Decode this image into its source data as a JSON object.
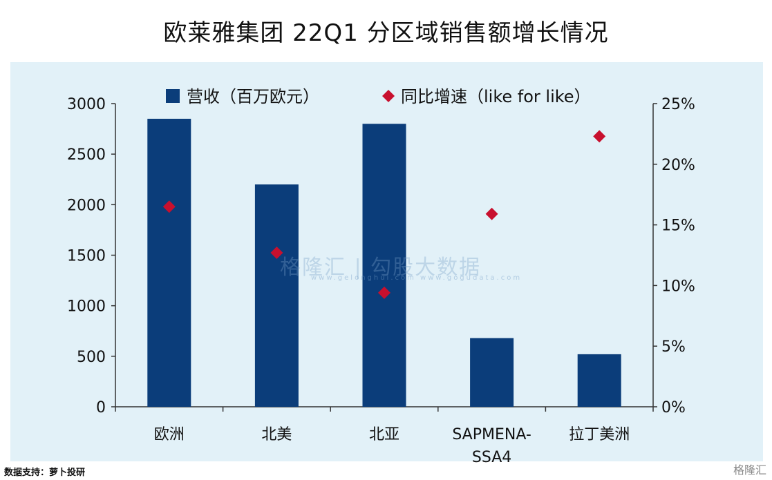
{
  "title": "欧莱雅集团 22Q1 分区域销售额增长情况",
  "footer": "数据支持：萝卜投研",
  "brand": "格隆汇",
  "watermark": {
    "text": "格隆汇 | 勾股大数据",
    "sub": "www.gelonghui.com  www.gogudata.com"
  },
  "colors": {
    "bar": "#0b3d7a",
    "marker": "#c8102e",
    "panel": "#e2f1f8"
  },
  "chart_data": {
    "type": "bar",
    "categories": [
      "欧洲",
      "北美",
      "北亚",
      "SAPMENA-SSA4",
      "拉丁美洲"
    ],
    "category_lines": [
      [
        "欧洲"
      ],
      [
        "北美"
      ],
      [
        "北亚"
      ],
      [
        "SAPMENA-",
        "SSA4"
      ],
      [
        "拉丁美洲"
      ]
    ],
    "series": [
      {
        "name": "营收（百万欧元）",
        "type": "bar",
        "axis": "left",
        "values": [
          2850,
          2200,
          2800,
          680,
          520
        ]
      },
      {
        "name": "同比增速（like for like）",
        "type": "scatter",
        "marker": "diamond",
        "axis": "right",
        "values": [
          16.5,
          12.7,
          9.4,
          15.9,
          22.3
        ]
      }
    ],
    "left_axis": {
      "ylim": [
        0,
        3000
      ],
      "ticks": [
        "0",
        "500",
        "1000",
        "1500",
        "2000",
        "2500",
        "3000"
      ]
    },
    "right_axis": {
      "ylim": [
        0,
        25
      ],
      "ticks": [
        "0%",
        "5%",
        "10%",
        "15%",
        "20%",
        "25%"
      ]
    },
    "legend_position": "top"
  }
}
